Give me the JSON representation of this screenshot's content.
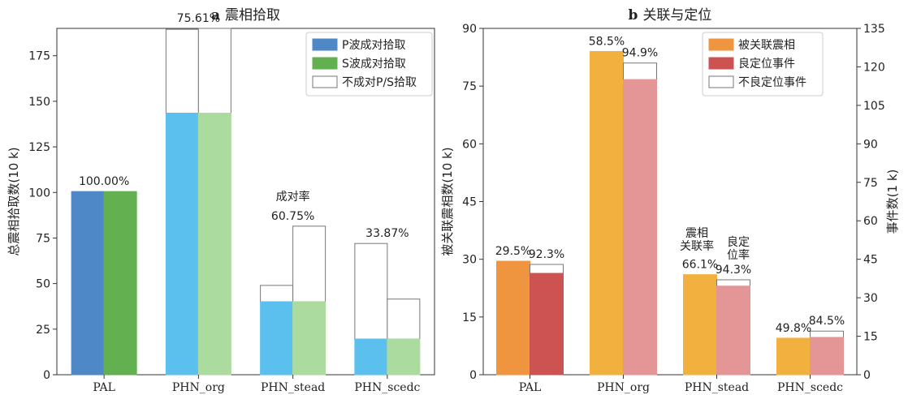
{
  "chart_data": [
    {
      "type": "bar",
      "panel": "a",
      "title": "震相拾取",
      "ylabel": "总震相拾取数(10 k)",
      "xlabel": "",
      "ylim": [
        0,
        190
      ],
      "yticks": [
        0,
        25,
        50,
        75,
        100,
        125,
        150,
        175
      ],
      "categories": [
        "PAL",
        "PHN_org",
        "PHN_stead",
        "PHN_scedc"
      ],
      "series": [
        {
          "name": "P波成对拾取",
          "values": [
            100.5,
            143.5,
            40,
            19.5
          ],
          "colors": [
            "#4f88c6",
            "#5bc0ee",
            "#5bc0ee",
            "#5bc0ee"
          ]
        },
        {
          "name": "S波成对拾取",
          "values": [
            100.5,
            143.5,
            40,
            19.5
          ],
          "colors": [
            "#62b04f",
            "#acdba0",
            "#acdba0",
            "#acdba0"
          ]
        },
        {
          "name": "不成对P/S拾取",
          "p_total": [
            100.5,
            189.5,
            49,
            72
          ],
          "s_total": [
            100.5,
            190,
            81.5,
            41.5
          ],
          "color": "#ffffff"
        }
      ],
      "bar_labels": [
        "100.00%",
        "75.61%",
        "60.75%",
        "33.87%"
      ],
      "annotation": "成对率",
      "legend": "top-right"
    },
    {
      "type": "bar",
      "panel": "b",
      "title": "关联与定位",
      "ylabel": "被关联震相数(10 k)",
      "y2label": "事件数(1 k)",
      "xlabel": "",
      "ylim": [
        0,
        90
      ],
      "yticks": [
        0,
        15,
        30,
        45,
        60,
        75,
        90
      ],
      "y2lim": [
        0,
        135
      ],
      "y2ticks": [
        0,
        15,
        30,
        45,
        60,
        75,
        90,
        105,
        120,
        135
      ],
      "categories": [
        "PAL",
        "PHN_org",
        "PHN_stead",
        "PHN_scedc"
      ],
      "series": [
        {
          "name": "被关联震相",
          "axis": "left",
          "values": [
            29.5,
            84,
            26,
            9.5
          ],
          "colors": [
            "#f0953f",
            "#f2b13f",
            "#f2b13f",
            "#f2b13f"
          ]
        },
        {
          "name": "良定位事件",
          "axis": "right",
          "values": [
            39.5,
            115,
            34.5,
            14.5
          ],
          "colors": [
            "#cd5252",
            "#e49595",
            "#e49595",
            "#e49595"
          ]
        },
        {
          "name": "不良定位事件",
          "axis": "right",
          "totals": [
            43,
            121.5,
            37,
            17
          ],
          "color": "#ffffff"
        }
      ],
      "bar_labels_left": [
        "29.5%",
        "58.5%",
        "66.1%",
        "49.8%"
      ],
      "bar_labels_right": [
        "92.3%",
        "94.9%",
        "94.3%",
        "84.5%"
      ],
      "annotation_left": [
        "震相",
        "关联率"
      ],
      "annotation_right": [
        "良定",
        "位率"
      ],
      "legend": "top-right"
    }
  ],
  "panel_labels": [
    "a",
    "b"
  ]
}
